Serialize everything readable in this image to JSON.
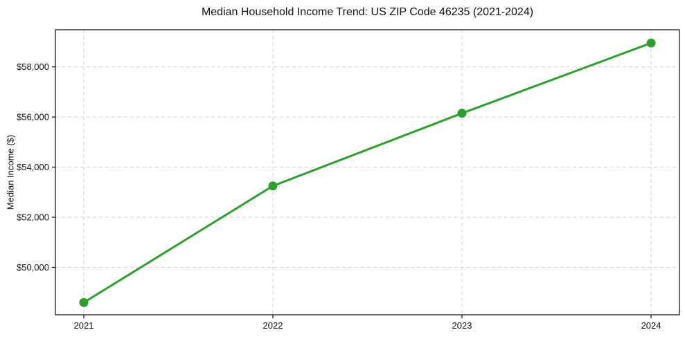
{
  "title": "Median Household Income Trend: US ZIP Code 46235 (2021-2024)",
  "chart_data": {
    "type": "line",
    "title": "Median Household Income Trend: US ZIP Code 46235 (2021-2024)",
    "xlabel": "",
    "ylabel": "Median Income ($)",
    "x": [
      2021,
      2022,
      2023,
      2024
    ],
    "xtick_labels": [
      "2021",
      "2022",
      "2023",
      "2024"
    ],
    "series": [
      {
        "name": "Median Household Income",
        "values": [
          48600,
          53250,
          56150,
          58950
        ]
      }
    ],
    "yticks": [
      50000,
      52000,
      54000,
      56000,
      58000
    ],
    "ytick_labels": [
      "$50,000",
      "$52,000",
      "$54,000",
      "$56,000",
      "$58,000"
    ],
    "ylim": [
      48110,
      59480
    ],
    "xlim": [
      2020.85,
      2024.15
    ],
    "grid": "dashed, both axes, at ticks",
    "legend": "none",
    "colors": {
      "line": "#2ca02c",
      "marker": "#2ca02c",
      "grid": "#d2d2d2",
      "spine": "#1a1a1a",
      "background": "#ffffff",
      "text": "#111111"
    },
    "marker_style": "filled circle",
    "line_width": 3,
    "marker_radius": 6.5
  }
}
